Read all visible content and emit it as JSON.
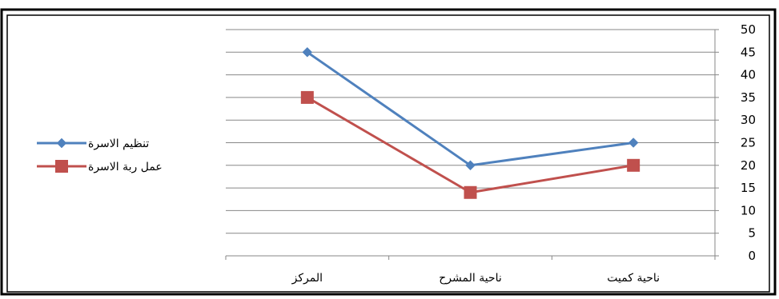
{
  "chart_data": {
    "type": "line",
    "categories": [
      "ناحية كميت",
      "ناحية المشرح",
      "المركز"
    ],
    "series": [
      {
        "name": "تنظيم الاسرة",
        "values": [
          25,
          20,
          45
        ],
        "color": "#4F81BD",
        "marker": "diamond"
      },
      {
        "name": "عمل ربة الاسرة",
        "values": [
          20,
          14,
          35
        ],
        "color": "#C0504D",
        "marker": "square"
      }
    ],
    "title": "",
    "xlabel": "",
    "ylabel": "",
    "ylim": [
      0,
      50
    ],
    "yticks": [
      0,
      5,
      10,
      15,
      20,
      25,
      30,
      35,
      40,
      45,
      50
    ],
    "y_axis_side": "right",
    "x_axis_reversed": true,
    "grid": true,
    "legend_position": "left"
  }
}
